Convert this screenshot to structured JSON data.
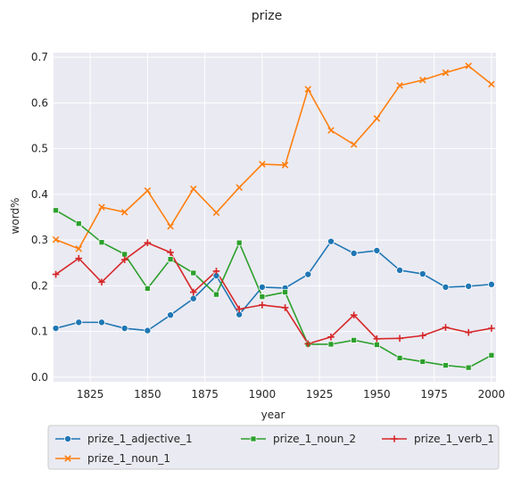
{
  "chart_data": {
    "type": "line",
    "title": "prize",
    "xlabel": "year",
    "ylabel": "word%",
    "xlim": [
      1809,
      2002
    ],
    "ylim": [
      -0.01,
      0.71
    ],
    "xticks": [
      "1825",
      "1850",
      "1875",
      "1900",
      "1925",
      "1950",
      "1975",
      "2000"
    ],
    "yticks": [
      "0.0",
      "0.1",
      "0.2",
      "0.3",
      "0.4",
      "0.5",
      "0.6",
      "0.7"
    ],
    "grid": true,
    "legend_position": "bottom",
    "x": [
      1810,
      1820,
      1830,
      1840,
      1850,
      1860,
      1870,
      1880,
      1890,
      1900,
      1910,
      1920,
      1930,
      1940,
      1950,
      1960,
      1970,
      1980,
      1990,
      2000
    ],
    "series": [
      {
        "name": "prize_1_adjective_1",
        "color": "#1f77b4",
        "marker": "circle",
        "values": [
          0.107,
          0.12,
          0.12,
          0.107,
          0.102,
          0.136,
          0.172,
          0.222,
          0.137,
          0.197,
          0.195,
          0.225,
          0.297,
          0.271,
          0.277,
          0.234,
          0.226,
          0.197,
          0.199,
          0.203
        ]
      },
      {
        "name": "prize_1_noun_1",
        "color": "#ff7f0e",
        "marker": "x",
        "values": [
          0.301,
          0.281,
          0.372,
          0.361,
          0.408,
          0.33,
          0.412,
          0.36,
          0.415,
          0.466,
          0.464,
          0.63,
          0.54,
          0.509,
          0.566,
          0.638,
          0.65,
          0.666,
          0.681,
          0.641
        ]
      },
      {
        "name": "prize_1_noun_2",
        "color": "#2ca02c",
        "marker": "square",
        "values": [
          0.365,
          0.336,
          0.295,
          0.269,
          0.194,
          0.258,
          0.228,
          0.181,
          0.294,
          0.176,
          0.186,
          0.072,
          0.072,
          0.081,
          0.071,
          0.042,
          0.034,
          0.026,
          0.021,
          0.048
        ]
      },
      {
        "name": "prize_1_verb_1",
        "color": "#d62728",
        "marker": "plus",
        "values": [
          0.225,
          0.26,
          0.208,
          0.257,
          0.294,
          0.273,
          0.186,
          0.232,
          0.149,
          0.158,
          0.152,
          0.073,
          0.088,
          0.136,
          0.084,
          0.085,
          0.091,
          0.109,
          0.098,
          0.107
        ]
      }
    ],
    "legend": [
      "prize_1_adjective_1",
      "prize_1_noun_2",
      "prize_1_verb_1",
      "prize_1_noun_1"
    ]
  }
}
